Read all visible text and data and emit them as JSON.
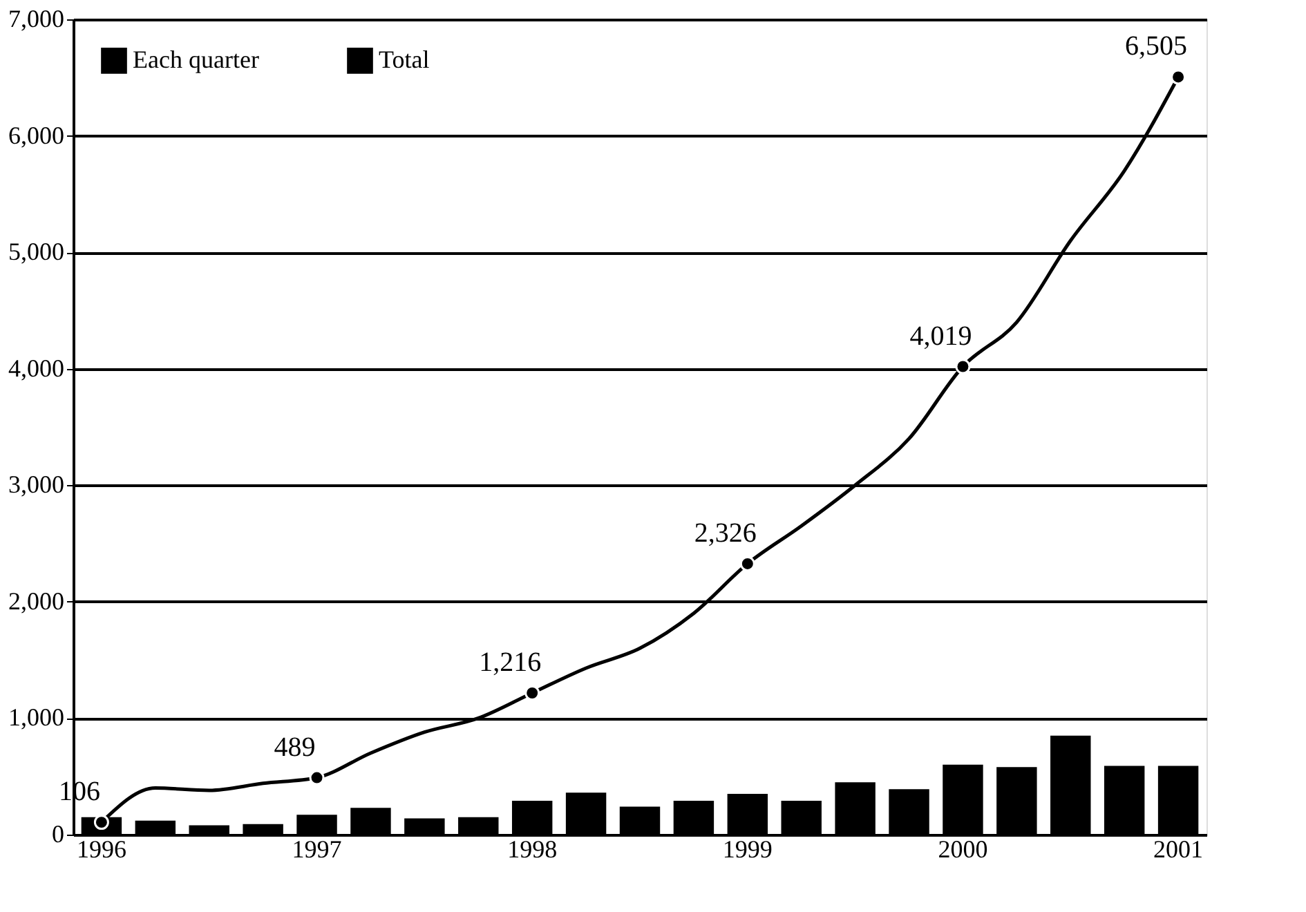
{
  "chart_data": {
    "type": "bar",
    "categories": [
      "1996",
      null,
      null,
      null,
      "1997",
      null,
      null,
      null,
      "1998",
      null,
      null,
      null,
      "1999",
      null,
      null,
      null,
      "2000",
      null,
      null,
      null,
      "2001"
    ],
    "series": [
      {
        "name": "Each quarter",
        "color": "#000000",
        "values": [
          150,
          120,
          80,
          90,
          170,
          230,
          140,
          150,
          290,
          360,
          240,
          290,
          350,
          290,
          450,
          390,
          600,
          580,
          850,
          590,
          590
        ]
      },
      {
        "name": "Total",
        "type": "line",
        "color": "#000000",
        "marker": "none",
        "line_style": "solid",
        "values": [
          106,
          400,
          380,
          440,
          489,
          700,
          880,
          1000,
          1216,
          1430,
          1600,
          1900,
          2326,
          2650,
          3000,
          3400,
          4019,
          4400,
          5100,
          5700,
          6505
        ]
      },
      {
        "type": "scatter",
        "color": "#000000",
        "marker": "circle",
        "values": [
          106,
          null,
          null,
          null,
          489,
          null,
          null,
          null,
          1216,
          null,
          null,
          null,
          2326,
          null,
          null,
          null,
          4019,
          null,
          null,
          null,
          6505
        ],
        "value_labels": [
          "106",
          null,
          null,
          null,
          "489",
          null,
          null,
          null,
          "1,216",
          null,
          null,
          null,
          "2,326",
          null,
          null,
          null,
          "4,019",
          null,
          null,
          null,
          "6,505"
        ]
      }
    ],
    "ylim": [
      0,
      7000
    ],
    "yticks": [
      0,
      {
        "value": 1000,
        "label": "1,000"
      },
      {
        "value": 2000,
        "label": "2,000"
      },
      {
        "value": 3000,
        "label": "3,000"
      },
      {
        "value": 4000,
        "label": "4,000"
      },
      {
        "value": 5000,
        "label": "5,000"
      },
      {
        "value": 6000,
        "label": "6,000"
      },
      {
        "value": 7000,
        "label": "7,000"
      }
    ],
    "grid": "y",
    "legend": "top left"
  }
}
